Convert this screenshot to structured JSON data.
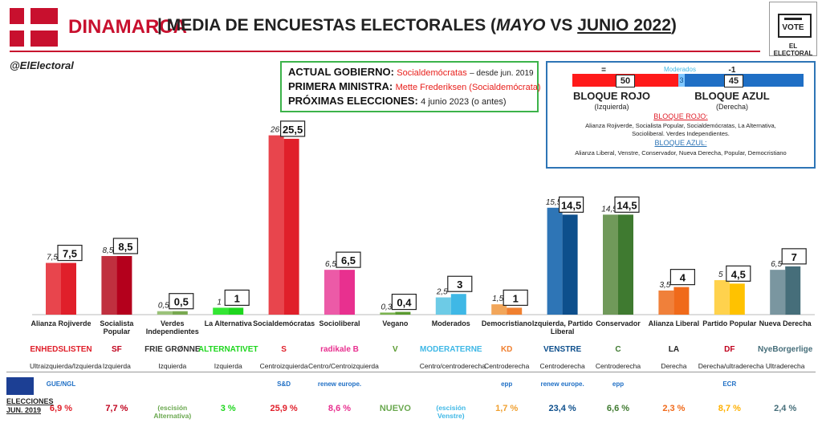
{
  "header": {
    "country": "DINAMARCA",
    "separator": "|",
    "title_part1": "MEDIA DE ENCUESTAS ELECTORALES (",
    "title_may": "MAYO",
    "title_vs": " VS ",
    "title_june": "JUNIO 2022",
    "title_end": ")",
    "handle": "@ElElectoral",
    "vote_text": "VOTE",
    "brand_text": "EL ELECTORAL",
    "accent_color": "#c8102e"
  },
  "government": {
    "gov_key": "ACTUAL GOBIERNO:",
    "gov_val": "Socialdemócratas",
    "gov_since": "– desde jun. 2019",
    "pm_key": "PRIMERA MINISTRA:",
    "pm_val": "Mette Frederiksen (Socialdemócrata)",
    "next_key": "PRÓXIMAS ELECCIONES:",
    "next_val": "4 junio 2023 (o antes)"
  },
  "blocs": {
    "red_change": "=",
    "blue_change": "-1",
    "moderados_label": "Moderados",
    "red_seats": "50",
    "mid_seats": "3",
    "blue_seats": "45",
    "red_title": "BLOQUE ROJO",
    "red_sub": "(Izquierda)",
    "blue_title": "BLOQUE AZUL",
    "blue_sub": "(Derecha)",
    "red_heading": "BLOQUE ROJO:",
    "red_members_1": "Alianza Rojiverde, Socialista Popular, Socialdemócratas, La Alternativa,",
    "red_members_2": "Socioliberal. Verdes Independientes.",
    "blue_heading": "BLOQUE AZUL:",
    "blue_members": "Alianza Liberal, Venstre, Conservador, Nueva Derecha, Popular, Democristiano"
  },
  "chart_data": {
    "type": "bar",
    "title": "MEDIA DE ENCUESTAS ELECTORALES (MAYO VS JUNIO 2022)",
    "categories": [
      "Alianza Rojiverde",
      "Socialista Popular",
      "Verdes Independientes",
      "La Alternativa",
      "Socialdemócratas",
      "Socioliberal",
      "Vegano",
      "Moderados",
      "Democristiano",
      "Izquierda, Partido Liberal",
      "Conservador",
      "Alianza Liberal",
      "Partido Popular",
      "Nueva Derecha"
    ],
    "series": [
      {
        "name": "MAYO",
        "values": [
          7.5,
          8.5,
          0.5,
          1,
          26,
          6.5,
          0.3,
          2.5,
          1.5,
          15.5,
          14.5,
          3.5,
          5,
          6.5
        ]
      },
      {
        "name": "JUNIO 2022",
        "values": [
          7.5,
          8.5,
          0.5,
          1,
          25.5,
          6.5,
          0.4,
          3,
          1,
          14.5,
          14.5,
          4,
          4.5,
          7
        ]
      }
    ],
    "may_labels": [
      "7,5",
      "8,5",
      "0,5",
      "1",
      "26",
      "6,5",
      "0,3",
      "2,5",
      "1,5",
      "15,5",
      "14,5",
      "3,5",
      "5",
      "6,5"
    ],
    "june_labels": [
      "7,5",
      "8,5",
      "0,5",
      "1",
      "25,5",
      "6,5",
      "0,4",
      "3",
      "1",
      "14,5",
      "14,5",
      "4",
      "4,5",
      "7"
    ],
    "colors_may": [
      "#e8454d",
      "#c0303f",
      "#9bc27a",
      "#33e633",
      "#e8454d",
      "#ec5aa7",
      "#7ab34f",
      "#6dcbe6",
      "#f2a65a",
      "#2e75b6",
      "#70995a",
      "#f0803a",
      "#ffd24d",
      "#7a96a0"
    ],
    "colors_june": [
      "#e01f2a",
      "#b4001c",
      "#78a850",
      "#1ed61e",
      "#e01f2a",
      "#e8308f",
      "#5a9a30",
      "#3fb8e6",
      "#f08030",
      "#0d4f8c",
      "#3f7a30",
      "#f06a1a",
      "#ffc200",
      "#466e7a"
    ],
    "ylim": [
      0,
      27
    ],
    "grid": false,
    "legend": "none"
  },
  "parties": [
    {
      "name": "Alianza Rojiverde",
      "ideology": "Ultraizquierda/Izquierda",
      "logo": "ENHEDSLISTEN",
      "logo_color": "#e01f2a",
      "result": "6,9 %",
      "result_color": "#e01f2a",
      "eu_group": "GUE/NGL"
    },
    {
      "name": "Socialista Popular",
      "ideology": "Izquierda",
      "logo": "SF",
      "logo_color": "#c0001c",
      "result": "7,7 %",
      "result_color": "#c0001c",
      "eu_group": ""
    },
    {
      "name": "Verdes Independientes",
      "ideology": "Izquierda",
      "logo": "FRIE GRØNNE",
      "logo_color": "#333333",
      "result": "(escisión Alternativa)",
      "result_color": "#6aa84f",
      "eu_group": ""
    },
    {
      "name": "La Alternativa",
      "ideology": "Izquierda",
      "logo": "ALTERNATIVET",
      "logo_color": "#1ed61e",
      "result": "3 %",
      "result_color": "#1ed61e",
      "eu_group": ""
    },
    {
      "name": "Socialdemócratas",
      "ideology": "Centroizquierda",
      "logo": "S",
      "logo_color": "#e01f2a",
      "result": "25,9 %",
      "result_color": "#e01f2a",
      "eu_group": "S&D"
    },
    {
      "name": "Socioliberal",
      "ideology": "Centro/Centroizquierda",
      "logo": "radikale B",
      "logo_color": "#e8308f",
      "result": "8,6 %",
      "result_color": "#e8308f",
      "eu_group": "renew europe."
    },
    {
      "name": "Vegano",
      "ideology": "",
      "logo": "V",
      "logo_color": "#5a9a30",
      "result": "NUEVO",
      "result_color": "#6aa84f",
      "eu_group": ""
    },
    {
      "name": "Moderados",
      "ideology": "Centro/centroderecha",
      "logo": "MODERATERNE",
      "logo_color": "#3fb8e6",
      "result": "(escisión Venstre)",
      "result_color": "#3fb8e6",
      "eu_group": ""
    },
    {
      "name": "Democristiano",
      "ideology": "Centroderecha",
      "logo": "KD",
      "logo_color": "#f08030",
      "result": "1,7 %",
      "result_color": "#f0a030",
      "eu_group": "epp"
    },
    {
      "name": "Izquierda, Partido Liberal",
      "ideology": "Centroderecha",
      "logo": "VENSTRE",
      "logo_color": "#0d4f8c",
      "result": "23,4 %",
      "result_color": "#0d4f8c",
      "eu_group": "renew europe."
    },
    {
      "name": "Conservador",
      "ideology": "Centroderecha",
      "logo": "C",
      "logo_color": "#3f7a30",
      "result": "6,6 %",
      "result_color": "#3f7a30",
      "eu_group": "epp"
    },
    {
      "name": "Alianza Liberal",
      "ideology": "Derecha",
      "logo": "LA",
      "logo_color": "#222222",
      "result": "2,3 %",
      "result_color": "#f06a1a",
      "eu_group": ""
    },
    {
      "name": "Partido Popular",
      "ideology": "Derecha/ultraderecha",
      "logo": "DF",
      "logo_color": "#c0001c",
      "result": "8,7 %",
      "result_color": "#ffb000",
      "eu_group": "ECR"
    },
    {
      "name": "Nueva Derecha",
      "ideology": "Ultraderecha",
      "logo": "NyeBorgerlige",
      "logo_color": "#466e7a",
      "result": "2,4 %",
      "result_color": "#466e7a",
      "eu_group": ""
    }
  ],
  "elections": {
    "label_line1": "ELECCIONES",
    "label_line2": "JUN. 2019"
  }
}
